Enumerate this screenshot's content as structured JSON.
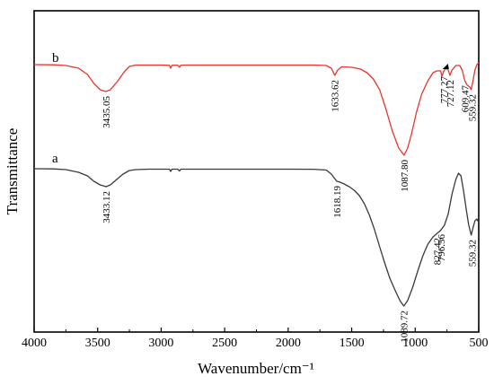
{
  "chart_data": {
    "type": "line",
    "xlabel": "Wavenumber/cm⁻¹",
    "ylabel": "Transmittance",
    "xlim": [
      4000,
      500
    ],
    "x_reversed": true,
    "xticks": [
      4000,
      3500,
      3000,
      2500,
      2000,
      1500,
      1000,
      500
    ],
    "yticks_shown": false,
    "grid": false,
    "series": [
      {
        "name": "b",
        "color": "#e8342e",
        "points": [
          [
            4000,
            72
          ],
          [
            3850,
            72.2
          ],
          [
            3750,
            73
          ],
          [
            3650,
            76
          ],
          [
            3580,
            83
          ],
          [
            3530,
            93
          ],
          [
            3480,
            100
          ],
          [
            3435.05,
            102
          ],
          [
            3400,
            100
          ],
          [
            3340,
            90
          ],
          [
            3290,
            80
          ],
          [
            3250,
            74
          ],
          [
            3200,
            72.5
          ],
          [
            3100,
            72.5
          ],
          [
            3000,
            72.5
          ],
          [
            2935,
            72.8
          ],
          [
            2925,
            76
          ],
          [
            2915,
            72.8
          ],
          [
            2870,
            72.6
          ],
          [
            2855,
            75
          ],
          [
            2845,
            72.6
          ],
          [
            2800,
            72.5
          ],
          [
            2500,
            72.5
          ],
          [
            2200,
            72.5
          ],
          [
            2000,
            72.5
          ],
          [
            1800,
            72.5
          ],
          [
            1700,
            73
          ],
          [
            1660,
            76
          ],
          [
            1633.62,
            84
          ],
          [
            1610,
            78
          ],
          [
            1580,
            74.5
          ],
          [
            1500,
            75
          ],
          [
            1430,
            77
          ],
          [
            1380,
            81
          ],
          [
            1330,
            88
          ],
          [
            1280,
            100
          ],
          [
            1230,
            122
          ],
          [
            1180,
            146
          ],
          [
            1130,
            165
          ],
          [
            1087.8,
            173
          ],
          [
            1060,
            165
          ],
          [
            1030,
            150
          ],
          [
            990,
            125
          ],
          [
            950,
            105
          ],
          [
            900,
            90
          ],
          [
            860,
            81
          ],
          [
            830,
            79
          ],
          [
            800,
            79
          ],
          [
            790,
            85
          ],
          [
            777.27,
            80
          ],
          [
            760,
            76
          ],
          [
            740,
            78
          ],
          [
            727.12,
            84
          ],
          [
            710,
            78
          ],
          [
            680,
            73
          ],
          [
            650,
            73
          ],
          [
            630,
            78
          ],
          [
            609.47,
            90
          ],
          [
            590,
            95
          ],
          [
            570,
            97
          ],
          [
            559.32,
            100
          ],
          [
            545,
            90
          ],
          [
            530,
            78
          ],
          [
            515,
            72
          ],
          [
            500,
            70
          ]
        ]
      },
      {
        "name": "a",
        "color": "#3a3a3a",
        "points": [
          [
            4000,
            188
          ],
          [
            3850,
            188.2
          ],
          [
            3750,
            189
          ],
          [
            3650,
            192
          ],
          [
            3580,
            196
          ],
          [
            3530,
            202
          ],
          [
            3480,
            206
          ],
          [
            3433.12,
            208
          ],
          [
            3400,
            206
          ],
          [
            3350,
            200
          ],
          [
            3300,
            194
          ],
          [
            3250,
            190
          ],
          [
            3200,
            189
          ],
          [
            3100,
            188.5
          ],
          [
            3000,
            188.5
          ],
          [
            2935,
            188.5
          ],
          [
            2925,
            191
          ],
          [
            2915,
            188.5
          ],
          [
            2870,
            188.5
          ],
          [
            2855,
            190.5
          ],
          [
            2845,
            188.5
          ],
          [
            2800,
            188.5
          ],
          [
            2500,
            188.5
          ],
          [
            2200,
            188.5
          ],
          [
            2000,
            188.5
          ],
          [
            1800,
            188.6
          ],
          [
            1700,
            189.5
          ],
          [
            1660,
            194
          ],
          [
            1618.19,
            202
          ],
          [
            1590,
            203
          ],
          [
            1560,
            205
          ],
          [
            1520,
            208
          ],
          [
            1480,
            212
          ],
          [
            1440,
            218
          ],
          [
            1400,
            227
          ],
          [
            1360,
            240
          ],
          [
            1320,
            256
          ],
          [
            1280,
            275
          ],
          [
            1240,
            293
          ],
          [
            1200,
            310
          ],
          [
            1160,
            323
          ],
          [
            1120,
            335
          ],
          [
            1089.72,
            341
          ],
          [
            1060,
            335
          ],
          [
            1020,
            320
          ],
          [
            980,
            302
          ],
          [
            940,
            285
          ],
          [
            900,
            272
          ],
          [
            860,
            264
          ],
          [
            827.42,
            260
          ],
          [
            810,
            258
          ],
          [
            796.56,
            256
          ],
          [
            770,
            251
          ],
          [
            740,
            238
          ],
          [
            710,
            216
          ],
          [
            680,
            200
          ],
          [
            660,
            193
          ],
          [
            640,
            196
          ],
          [
            620,
            212
          ],
          [
            600,
            232
          ],
          [
            580,
            250
          ],
          [
            559.32,
            262
          ],
          [
            545,
            254
          ],
          [
            530,
            246
          ],
          [
            515,
            244
          ],
          [
            500,
            248
          ]
        ]
      }
    ],
    "peak_labels": [
      {
        "text": "3435.05",
        "series": "b"
      },
      {
        "text": "1633.62",
        "series": "b"
      },
      {
        "text": "1087.80",
        "series": "b"
      },
      {
        "text": "777.27",
        "series": "b"
      },
      {
        "text": "727.12",
        "series": "b"
      },
      {
        "text": "609.47",
        "series": "b"
      },
      {
        "text": "559.32",
        "series": "b"
      },
      {
        "text": "3433.12",
        "series": "a"
      },
      {
        "text": "1618.19",
        "series": "a"
      },
      {
        "text": "1089.72",
        "series": "a"
      },
      {
        "text": "827.42",
        "series": "a"
      },
      {
        "text": "796.56",
        "series": "a"
      },
      {
        "text": "559.32",
        "series": "a"
      }
    ],
    "series_labels": [
      "b",
      "a"
    ]
  }
}
